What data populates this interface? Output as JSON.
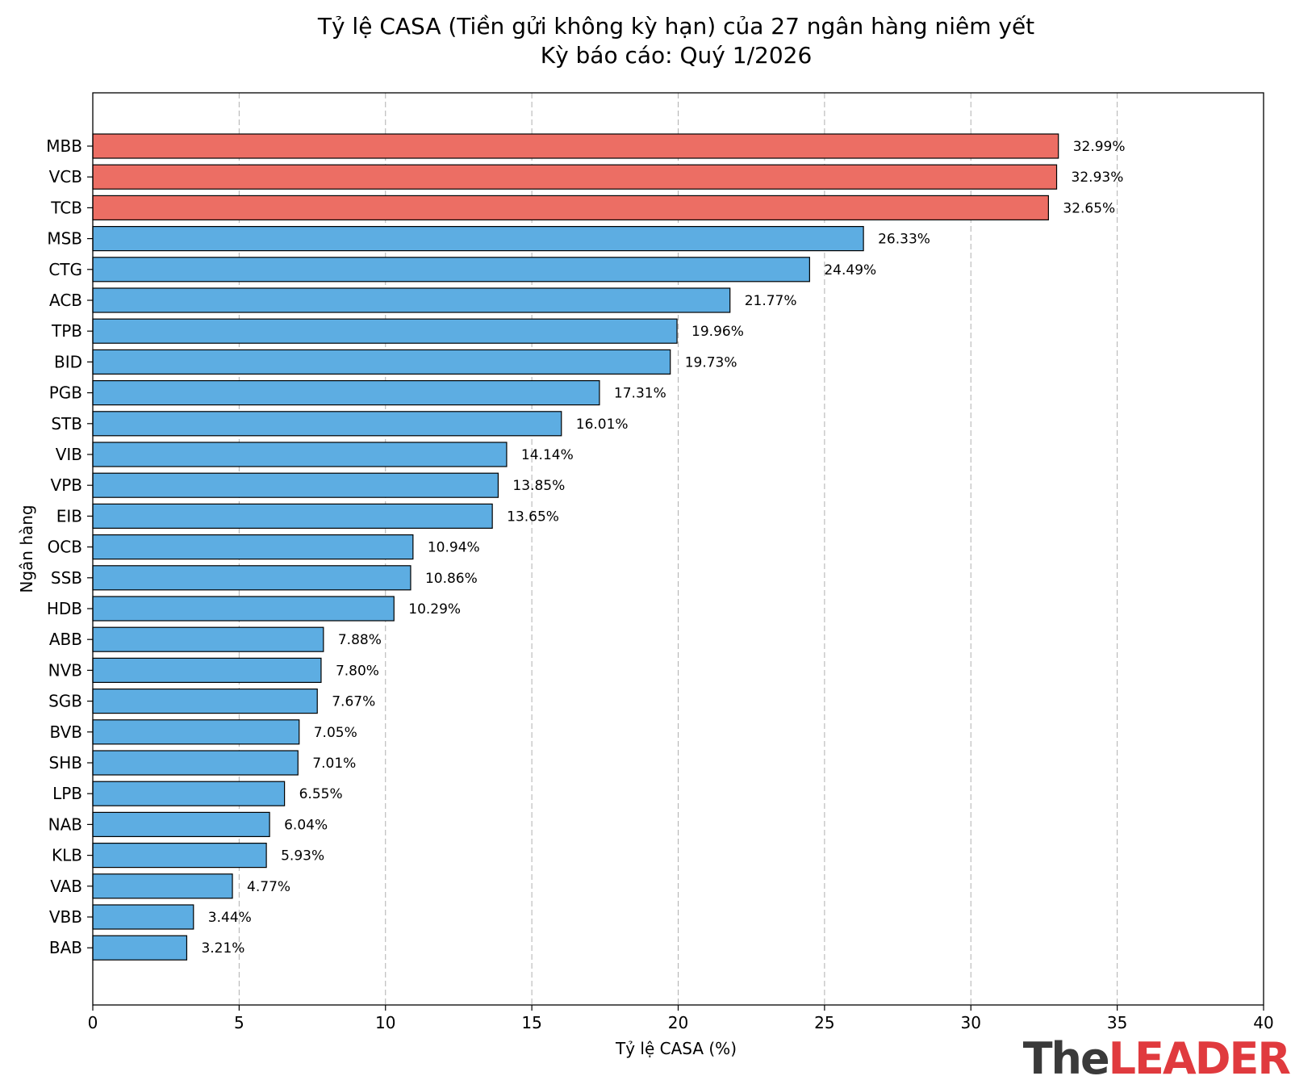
{
  "chart_data": {
    "type": "bar",
    "orientation": "horizontal",
    "title": [
      "Tỷ lệ CASA (Tiền gửi không kỳ hạn) của 27 ngân hàng niêm yết",
      "Kỳ báo cáo: Quý 1/2026"
    ],
    "xlabel": "Tỷ lệ CASA (%)",
    "ylabel": "Ngân hàng",
    "xlim": [
      0,
      40
    ],
    "xticks": [
      0,
      5,
      10,
      15,
      20,
      25,
      30,
      35,
      40
    ],
    "grid": "vertical dashed",
    "highlight_color": "#ec6e64",
    "default_color": "#5dade2",
    "highlight_count": 3,
    "categories": [
      "MBB",
      "VCB",
      "TCB",
      "MSB",
      "CTG",
      "ACB",
      "TPB",
      "BID",
      "PGB",
      "STB",
      "VIB",
      "VPB",
      "EIB",
      "OCB",
      "SSB",
      "HDB",
      "ABB",
      "NVB",
      "SGB",
      "BVB",
      "SHB",
      "LPB",
      "NAB",
      "KLB",
      "VAB",
      "VBB",
      "BAB"
    ],
    "values": [
      32.99,
      32.93,
      32.65,
      26.33,
      24.49,
      21.77,
      19.96,
      19.73,
      17.31,
      16.01,
      14.14,
      13.85,
      13.65,
      10.94,
      10.86,
      10.29,
      7.88,
      7.8,
      7.67,
      7.05,
      7.01,
      6.55,
      6.04,
      5.93,
      4.77,
      3.44,
      3.21
    ],
    "value_labels": [
      "32.99%",
      "32.93%",
      "32.65%",
      "26.33%",
      "24.49%",
      "21.77%",
      "19.96%",
      "19.73%",
      "17.31%",
      "16.01%",
      "14.14%",
      "13.85%",
      "13.65%",
      "10.94%",
      "10.86%",
      "10.29%",
      "7.88%",
      "7.80%",
      "7.67%",
      "7.05%",
      "7.01%",
      "6.55%",
      "6.04%",
      "5.93%",
      "4.77%",
      "3.44%",
      "3.21%"
    ]
  },
  "logo": {
    "part1": "The",
    "part2": "LEADER",
    "part2_color": "#e03a3e"
  }
}
